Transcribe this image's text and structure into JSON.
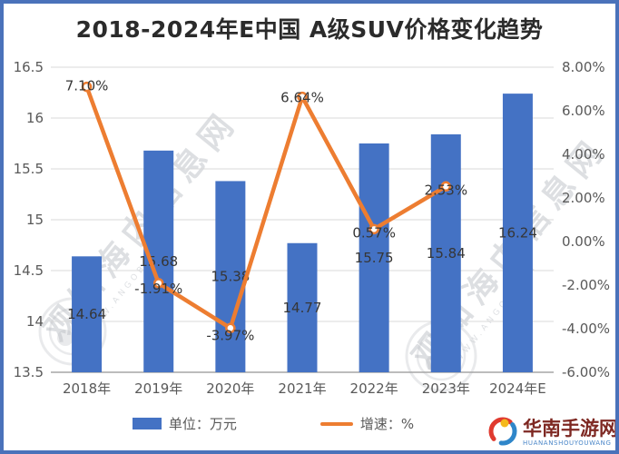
{
  "title": "2018-2024年E中国 A级SUV价格变化趋势",
  "chart_data": {
    "type": "bar+line combo",
    "categories": [
      "2018年",
      "2019年",
      "2020年",
      "2021年",
      "2022年",
      "2023年",
      "2024年E"
    ],
    "series": [
      {
        "name": "单位：万元",
        "type": "bar",
        "axis": "left",
        "color": "#4472C4",
        "values": [
          14.64,
          15.68,
          15.38,
          14.77,
          15.75,
          15.84,
          16.24
        ],
        "labels": [
          "14.64",
          "15.68",
          "15.38",
          "14.77",
          "15.75",
          "15.84",
          "16.24"
        ]
      },
      {
        "name": "增速：%",
        "type": "line",
        "axis": "right",
        "color": "#ED7D31",
        "marker_fill": "#ffffff",
        "values": [
          7.1,
          -1.91,
          -3.97,
          6.64,
          0.57,
          2.53
        ],
        "labels": [
          "7.10%",
          "-1.91%",
          "-3.97%",
          "6.64%",
          "0.57%",
          "2.53%"
        ],
        "label_dy": [
          4,
          11,
          13,
          6,
          9,
          9
        ]
      }
    ],
    "left_axis": {
      "min": 13.5,
      "max": 16.5,
      "step": 0.5,
      "ticks": [
        "16.5",
        "16",
        "15.5",
        "15",
        "14.5",
        "14",
        "13.5"
      ]
    },
    "right_axis": {
      "min": -6,
      "max": 8,
      "step": 2,
      "ticks": [
        "8.00%",
        "6.00%",
        "4.00%",
        "2.00%",
        "0.00%",
        "-2.00%",
        "-4.00%",
        "-6.00%"
      ]
    },
    "grid": true,
    "gridline_color": "#d9d9d9",
    "axisline_color": "#a6a6a6",
    "legend_position": "bottom"
  },
  "watermark": {
    "text": "观知海内信息网",
    "url_text": "WWW.ANGOB.CON"
  },
  "logo": {
    "name": "华南手游网",
    "subtitle": "HUANANSHOUYOUWANG"
  },
  "frame": {
    "border_color": "#4a72ba"
  }
}
